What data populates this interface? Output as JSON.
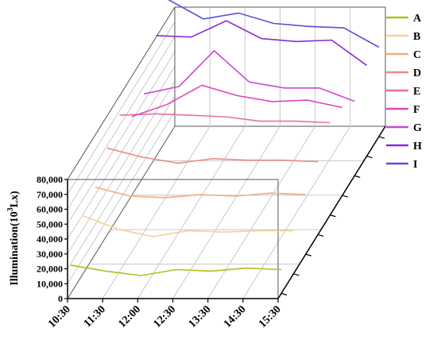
{
  "chart_data": {
    "type": "line",
    "style": "3d-waterfall",
    "ylabel_main": "Illumination(10",
    "ylabel_sup": "3",
    "ylabel_tail": "Lx)",
    "y_ticks": [
      "0",
      "10,000",
      "20,000",
      "30,000",
      "40,000",
      "50,000",
      "60,000",
      "70,000",
      "80,000"
    ],
    "ylim": [
      0,
      80000
    ],
    "categories": [
      "10:30",
      "11:30",
      "12:00",
      "12:30",
      "13:30",
      "14:30",
      "15:30"
    ],
    "grid": true,
    "legend_position": "right",
    "series": [
      {
        "name": "A",
        "color": "#b5bd1e",
        "values": [
          19000,
          15000,
          12000,
          16000,
          15000,
          17000,
          16000
        ]
      },
      {
        "name": "B",
        "color": "#f8cf99",
        "values": [
          39000,
          30000,
          25000,
          29000,
          28000,
          29000,
          29000
        ]
      },
      {
        "name": "C",
        "color": "#f3ab80",
        "values": [
          45000,
          39000,
          38000,
          40000,
          39000,
          41000,
          40000
        ]
      },
      {
        "name": "D",
        "color": "#ec8a8a",
        "values": [
          58000,
          52000,
          48000,
          51000,
          50000,
          50000,
          49000
        ]
      },
      {
        "name": "E",
        "color": "#e870a0",
        "values": [
          67000,
          68000,
          67000,
          66000,
          63000,
          63000,
          62000
        ]
      },
      {
        "name": "F",
        "color": "#e045c0",
        "values": [
          53000,
          61000,
          74000,
          67000,
          63000,
          64000,
          59000
        ]
      },
      {
        "name": "G",
        "color": "#cb47d8",
        "values": [
          55000,
          60000,
          84000,
          63000,
          59000,
          59000,
          50000
        ]
      },
      {
        "name": "H",
        "color": "#8b28d8",
        "values": [
          81000,
          80000,
          91000,
          79000,
          77000,
          78000,
          61000
        ]
      },
      {
        "name": "I",
        "color": "#5a4fd8",
        "values": [
          92000,
          79000,
          83000,
          76000,
          74000,
          73000,
          60000
        ]
      }
    ]
  }
}
